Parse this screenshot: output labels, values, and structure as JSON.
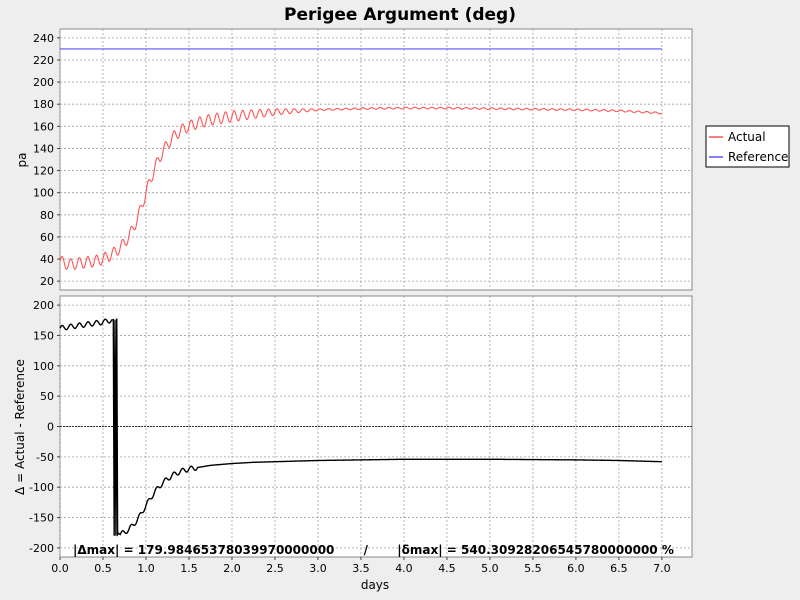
{
  "chart_data": {
    "title": "Perigee Argument (deg)",
    "xlabel": "days",
    "xlim": [
      0.0,
      7.35
    ],
    "xticks": [
      0.0,
      0.5,
      1.0,
      1.5,
      2.0,
      2.5,
      3.0,
      3.5,
      4.0,
      4.5,
      5.0,
      5.5,
      6.0,
      6.5,
      7.0
    ],
    "xtick_labels": [
      "0.0",
      "0.5",
      "1.0",
      "1.5",
      "2.0",
      "2.5",
      "3.0",
      "3.5",
      "4.0",
      "4.5",
      "5.0",
      "5.5",
      "6.0",
      "6.5",
      "7.0"
    ],
    "legend": {
      "placement": "right",
      "entries": [
        {
          "label": "Actual",
          "color": "#ff5555"
        },
        {
          "label": "Reference",
          "color": "#5555ff"
        }
      ]
    },
    "grid": true,
    "panels": [
      {
        "type": "line",
        "ylabel": "pa",
        "ylim": [
          12,
          248
        ],
        "yticks": [
          20,
          40,
          60,
          80,
          100,
          120,
          140,
          160,
          180,
          200,
          220,
          240
        ],
        "ytick_labels": [
          "20",
          "40",
          "60",
          "80",
          "100",
          "120",
          "140",
          "160",
          "180",
          "200",
          "220",
          "240"
        ],
        "series": [
          {
            "name": "Actual",
            "color": "#ff5555",
            "oscillation_amplitude": 5,
            "oscillation_period": 0.1,
            "x": [
              0.0,
              0.1,
              0.2,
              0.3,
              0.4,
              0.5,
              0.6,
              0.7,
              0.8,
              0.9,
              1.0,
              1.1,
              1.2,
              1.3,
              1.4,
              1.5,
              1.6,
              1.75,
              2.0,
              2.25,
              2.5,
              3.0,
              3.5,
              4.0,
              4.5,
              5.0,
              5.5,
              6.0,
              6.5,
              7.0
            ],
            "y": [
              38,
              35,
              36,
              37,
              38,
              40,
              44,
              50,
              60,
              76,
              100,
              122,
              138,
              149,
              156,
              160,
              163,
              166,
              169,
              171,
              173,
              175,
              176,
              176.5,
              176.5,
              176,
              175.5,
              175,
              174,
              172
            ]
          },
          {
            "name": "Reference",
            "color": "#5555ff",
            "x": [
              0.0,
              7.0
            ],
            "y": [
              230,
              230
            ]
          }
        ]
      },
      {
        "type": "line",
        "ylabel": "Δ = Actual - Reference",
        "ylim": [
          -215,
          215
        ],
        "yticks": [
          -200,
          -150,
          -100,
          -50,
          0,
          50,
          100,
          150,
          200
        ],
        "ytick_labels": [
          "-200",
          "-150",
          "-100",
          "-50",
          "0",
          "50",
          "100",
          "150",
          "200"
        ],
        "zero_line": true,
        "annotation": "|Δmax| = 179.98465378039970000000       /       |δmax| = 540.30928206545780000000 %",
        "series": [
          {
            "name": "Δ",
            "color": "#000000",
            "x": [
              0.0,
              0.1,
              0.2,
              0.3,
              0.4,
              0.5,
              0.62,
              0.63,
              0.64,
              0.65,
              0.66,
              0.67,
              0.68,
              0.7,
              0.8,
              0.9,
              1.0,
              1.1,
              1.2,
              1.3,
              1.4,
              1.5,
              1.75,
              2.0,
              2.25,
              2.5,
              3.0,
              3.5,
              4.0,
              4.5,
              5.0,
              5.5,
              6.0,
              6.5,
              7.0
            ],
            "y": [
              162,
              164,
              166,
              168,
              170,
              172,
              176,
              -180,
              176,
              -180,
              178,
              -178,
              -176,
              -178,
              -170,
              -154,
              -130,
              -108,
              -92,
              -81,
              -74,
              -70,
              -64,
              -61,
              -59,
              -58,
              -56,
              -55,
              -54,
              -54,
              -54,
              -54.5,
              -55,
              -56,
              -58
            ]
          }
        ]
      }
    ]
  }
}
